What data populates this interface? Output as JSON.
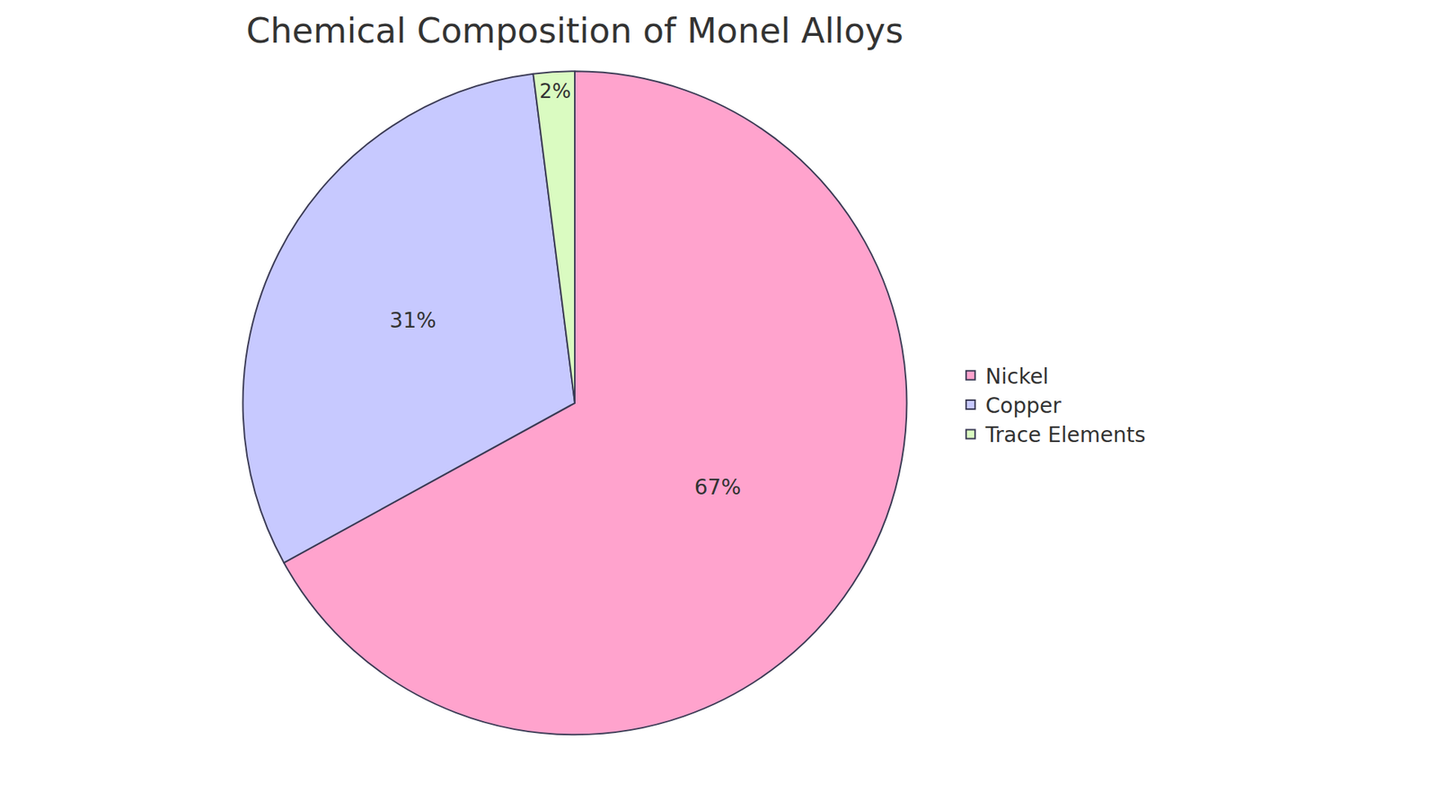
{
  "chart_data": {
    "type": "pie",
    "title": "Chemical Composition of Monel Alloys",
    "categories": [
      "Nickel",
      "Copper",
      "Trace Elements"
    ],
    "values": [
      67,
      31,
      2
    ],
    "value_labels": [
      "67%",
      "31%",
      "2%"
    ],
    "colors": [
      "#ffa3cd",
      "#c7c9ff",
      "#dafbc1"
    ],
    "data_labels": true,
    "legend": "right"
  }
}
